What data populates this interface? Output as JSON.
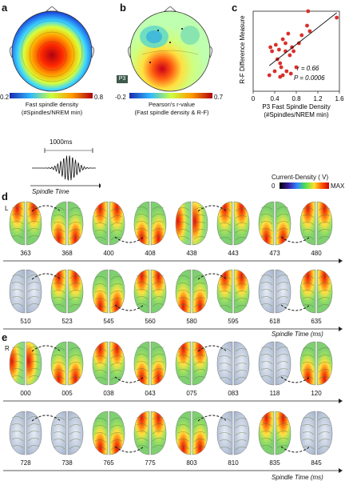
{
  "panels": {
    "a": {
      "label": "a",
      "cbar_min": "0.2",
      "cbar_max": "0.8",
      "caption_line1": "Fast spindle density",
      "caption_line2": "(#Spindles/NREM min)"
    },
    "b": {
      "label": "b",
      "electrode": "P3",
      "cbar_min": "-0.2",
      "cbar_max": "0.7",
      "caption_line1": "Pearson's r-value",
      "caption_line2": "(Fast spindle density & R-F)"
    },
    "c": {
      "label": "c",
      "stat_r": "r = 0.66",
      "stat_p": "P = 0.0006"
    },
    "spindle": {
      "duration_label": "1000ms",
      "axis_label": "Spindle Time"
    },
    "current_density": {
      "title": "Current-Density ( V)",
      "min": "0",
      "max": "MAX"
    },
    "d": {
      "label": "d",
      "hemisphere": "L",
      "row1": [
        "363",
        "368",
        "400",
        "408",
        "438",
        "443",
        "473",
        "480"
      ],
      "row2": [
        "510",
        "523",
        "545",
        "560",
        "580",
        "595",
        "618",
        "635"
      ],
      "axis_label": "Spindle Time (ms)"
    },
    "e": {
      "label": "e",
      "hemisphere": "R",
      "row1": [
        "000",
        "005",
        "038",
        "043",
        "075",
        "083",
        "118",
        "120"
      ],
      "row2": [
        "728",
        "738",
        "765",
        "775",
        "803",
        "810",
        "835",
        "845"
      ],
      "axis_label": "Spindle Time (ms)"
    }
  },
  "chart_data": {
    "type": "scatter",
    "xlabel_line1": "P3 Fast Spindle Density",
    "xlabel_line2": "(#Spindles/NREM min)",
    "ylabel": "R-F Difference Measure",
    "xlim": [
      0,
      1.6
    ],
    "ylim": [
      0,
      1.0
    ],
    "xticks": [
      "0",
      "0.4",
      "0.8",
      "1.2",
      "1.6"
    ],
    "point_color": "#d9302c",
    "x": [
      0.3,
      0.32,
      0.35,
      0.4,
      0.42,
      0.45,
      0.48,
      0.5,
      0.5,
      0.52,
      0.55,
      0.55,
      0.6,
      0.6,
      0.62,
      0.65,
      0.68,
      0.7,
      0.72,
      0.75,
      0.8,
      0.85,
      0.9,
      1.0,
      1.02,
      1.05,
      1.55
    ],
    "y": [
      0.2,
      0.55,
      0.5,
      0.25,
      0.58,
      0.4,
      0.52,
      0.35,
      0.18,
      0.3,
      0.65,
      0.2,
      0.5,
      0.6,
      0.25,
      0.72,
      0.45,
      0.22,
      0.55,
      0.5,
      0.3,
      0.6,
      0.7,
      0.82,
      1.0,
      0.75,
      0.92
    ],
    "fit": {
      "x": [
        0.3,
        1.55
      ],
      "y": [
        0.32,
        0.98
      ]
    }
  }
}
